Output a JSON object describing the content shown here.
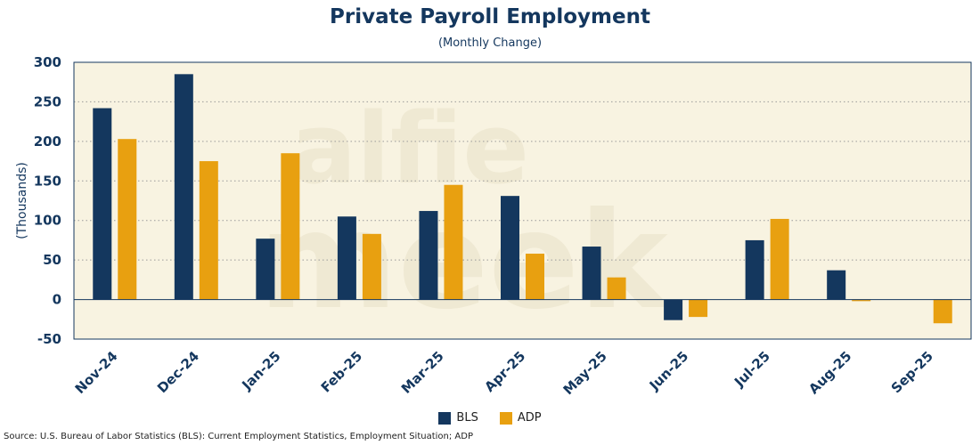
{
  "chart_data": {
    "type": "bar",
    "title": "Private Payroll Employment",
    "subtitle": "(Monthly Change)",
    "xlabel": "",
    "ylabel": "(Thousands)",
    "ylim": [
      -50,
      300
    ],
    "yticks": [
      300,
      250,
      200,
      150,
      100,
      50,
      0,
      -50
    ],
    "grid": true,
    "legend_position": "bottom-center",
    "categories": [
      "Nov-24",
      "Dec-24",
      "Jan-25",
      "Feb-25",
      "Mar-25",
      "Apr-25",
      "May-25",
      "Jun-25",
      "Jul-25",
      "Aug-25",
      "Sep-25"
    ],
    "series": [
      {
        "name": "BLS",
        "color": "#14375e",
        "values": [
          242,
          285,
          77,
          105,
          112,
          131,
          67,
          -26,
          75,
          37,
          0
        ]
      },
      {
        "name": "ADP",
        "color": "#e8a010",
        "values": [
          203,
          175,
          185,
          83,
          145,
          58,
          28,
          -22,
          102,
          -2,
          -30
        ]
      }
    ],
    "watermark": [
      "alfie",
      "meek"
    ],
    "source": "Source: U.S. Bureau of Labor Statistics (BLS): Current Employment Statistics, Employment Situation; ADP"
  }
}
